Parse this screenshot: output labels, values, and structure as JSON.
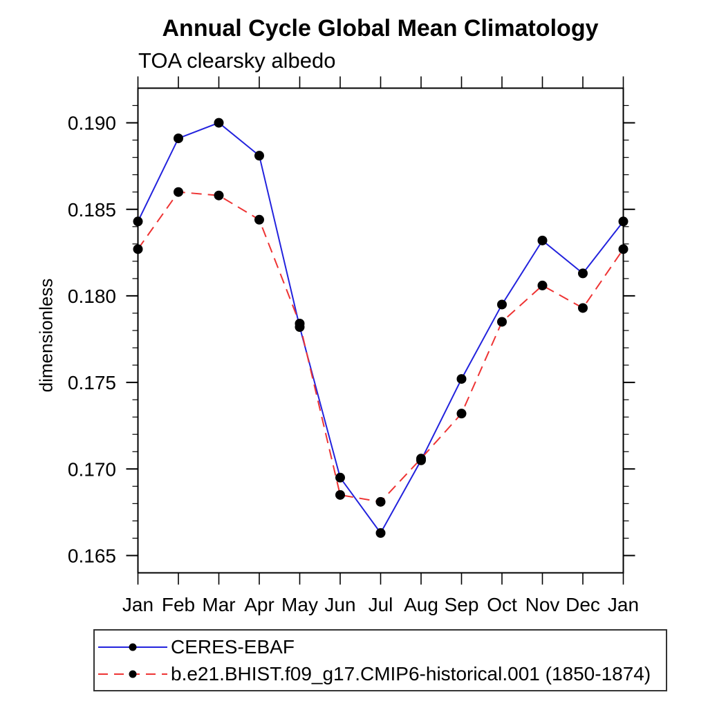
{
  "chart_data": {
    "type": "line",
    "title": "Annual Cycle Global Mean Climatology",
    "subtitle": "TOA clearsky albedo",
    "xlabel": "",
    "ylabel": "dimensionless",
    "categories": [
      "Jan",
      "Feb",
      "Mar",
      "Apr",
      "May",
      "Jun",
      "Jul",
      "Aug",
      "Sep",
      "Oct",
      "Nov",
      "Dec",
      "Jan"
    ],
    "ylim": [
      0.164,
      0.192
    ],
    "y_ticks_major": [
      0.165,
      0.17,
      0.175,
      0.18,
      0.185,
      0.19
    ],
    "y_minor_step": 0.001,
    "grid": false,
    "legend_position": "bottom-left",
    "marker": {
      "shape": "filled-circle",
      "color": "#000000"
    },
    "series": [
      {
        "name": "CERES-EBAF",
        "color": "#2222dd",
        "style": "solid",
        "values": [
          0.1843,
          0.1891,
          0.19,
          0.1881,
          0.1782,
          0.1695,
          0.1663,
          0.1705,
          0.1752,
          0.1795,
          0.1832,
          0.1813,
          0.1843
        ]
      },
      {
        "name": "b.e21.BHIST.f09_g17.CMIP6-historical.001 (1850-1874)",
        "color": "#ee3333",
        "style": "dashed",
        "values": [
          0.1827,
          0.186,
          0.1858,
          0.1844,
          0.1784,
          0.1685,
          0.1681,
          0.1706,
          0.1732,
          0.1785,
          0.1806,
          0.1793,
          0.1827
        ]
      }
    ],
    "axis_color": "#000000"
  }
}
